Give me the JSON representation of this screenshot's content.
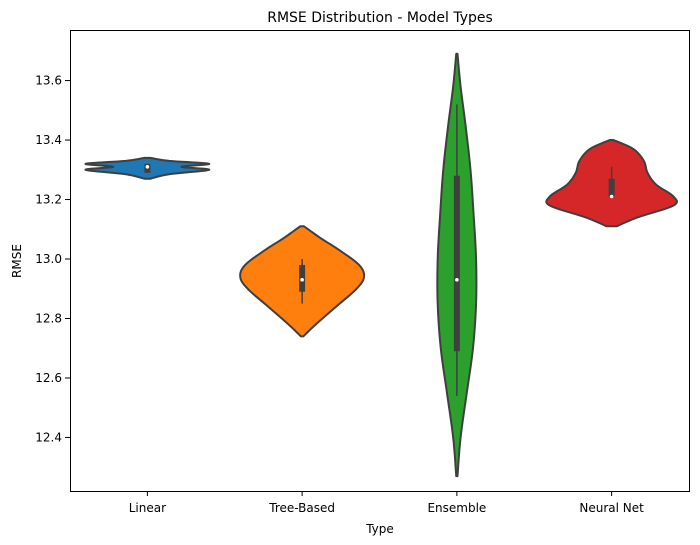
{
  "chart_data": {
    "type": "violin",
    "title": "RMSE Distribution - Model Types",
    "xlabel": "Type",
    "ylabel": "RMSE",
    "ylim": [
      12.22,
      13.77
    ],
    "yticks": [
      12.4,
      12.6,
      12.8,
      13.0,
      13.2,
      13.4,
      13.6
    ],
    "ytick_labels": [
      "12.4",
      "12.6",
      "12.8",
      "13.0",
      "13.2",
      "13.4",
      "13.6"
    ],
    "grid": false,
    "legend": "none",
    "categories": [
      "Linear",
      "Tree-Based",
      "Ensemble",
      "Neural Net"
    ],
    "colors": [
      "#1f77b4",
      "#ff7f0e",
      "#2ca02c",
      "#d62728"
    ],
    "violins": [
      {
        "category": "Linear",
        "kde_range": [
          13.27,
          13.34
        ],
        "profile": [
          [
            13.27,
            0.05
          ],
          [
            13.285,
            0.35
          ],
          [
            13.3,
            1.0
          ],
          [
            13.31,
            0.55
          ],
          [
            13.32,
            1.0
          ],
          [
            13.33,
            0.35
          ],
          [
            13.34,
            0.05
          ]
        ],
        "q1": 13.29,
        "median": 13.31,
        "q3": 13.32,
        "whisker_low": 13.29,
        "whisker_high": 13.32
      },
      {
        "category": "Tree-Based",
        "kde_range": [
          12.74,
          13.11
        ],
        "profile": [
          [
            12.74,
            0.02
          ],
          [
            12.78,
            0.22
          ],
          [
            12.84,
            0.55
          ],
          [
            12.9,
            0.88
          ],
          [
            12.94,
            1.0
          ],
          [
            12.98,
            0.92
          ],
          [
            13.03,
            0.6
          ],
          [
            13.07,
            0.3
          ],
          [
            13.11,
            0.03
          ]
        ],
        "q1": 12.89,
        "median": 12.93,
        "q3": 12.98,
        "whisker_low": 12.85,
        "whisker_high": 13.0
      },
      {
        "category": "Ensemble",
        "kde_range": [
          12.27,
          13.69
        ],
        "profile": [
          [
            12.27,
            0.01
          ],
          [
            12.4,
            0.06
          ],
          [
            12.55,
            0.16
          ],
          [
            12.7,
            0.26
          ],
          [
            12.85,
            0.31
          ],
          [
            13.0,
            0.31
          ],
          [
            13.15,
            0.27
          ],
          [
            13.3,
            0.22
          ],
          [
            13.45,
            0.14
          ],
          [
            13.58,
            0.06
          ],
          [
            13.69,
            0.01
          ]
        ],
        "q1": 12.69,
        "median": 12.93,
        "q3": 13.28,
        "whisker_low": 12.54,
        "whisker_high": 13.52
      },
      {
        "category": "Neural Net",
        "kde_range": [
          13.11,
          13.4
        ],
        "profile": [
          [
            13.11,
            0.08
          ],
          [
            13.14,
            0.42
          ],
          [
            13.18,
            1.0
          ],
          [
            13.21,
            1.0
          ],
          [
            13.25,
            0.72
          ],
          [
            13.29,
            0.58
          ],
          [
            13.33,
            0.52
          ],
          [
            13.37,
            0.35
          ],
          [
            13.4,
            0.03
          ]
        ],
        "q1": 13.21,
        "median": 13.21,
        "q3": 13.27,
        "whisker_low": 13.21,
        "whisker_high": 13.31
      }
    ]
  }
}
